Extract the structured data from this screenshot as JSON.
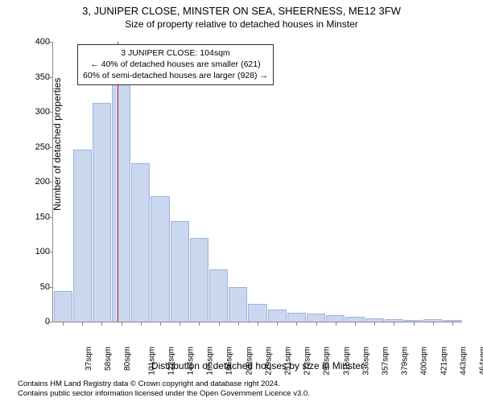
{
  "title": "3, JUNIPER CLOSE, MINSTER ON SEA, SHEERNESS, ME12 3FW",
  "subtitle": "Size of property relative to detached houses in Minster",
  "ylabel": "Number of detached properties",
  "xlabel": "Distribution of detached houses by size in Minster",
  "chart": {
    "type": "histogram",
    "ylim": [
      0,
      400
    ],
    "ytick_step": 50,
    "bar_fill": "#c9d7ef",
    "bar_stroke": "#9fb4db",
    "background": "#ffffff",
    "xticks": [
      "37sqm",
      "58sqm",
      "80sqm",
      "101sqm",
      "122sqm",
      "144sqm",
      "165sqm",
      "186sqm",
      "208sqm",
      "229sqm",
      "251sqm",
      "272sqm",
      "293sqm",
      "315sqm",
      "336sqm",
      "357sqm",
      "379sqm",
      "400sqm",
      "421sqm",
      "443sqm",
      "464sqm"
    ],
    "values": [
      42,
      245,
      312,
      338,
      225,
      178,
      142,
      118,
      74,
      48,
      24,
      16,
      12,
      10,
      8,
      6,
      4,
      2,
      1,
      2,
      1
    ],
    "marker_position_pct": 15.7,
    "marker_color": "#d01c1c"
  },
  "annotation": {
    "line1": "3 JUNIPER CLOSE: 104sqm",
    "line2": "← 40% of detached houses are smaller (621)",
    "line3": "60% of semi-detached houses are larger (928) →"
  },
  "footer": {
    "line1": "Contains HM Land Registry data © Crown copyright and database right 2024.",
    "line2": "Contains public sector information licensed under the Open Government Licence v3.0."
  }
}
